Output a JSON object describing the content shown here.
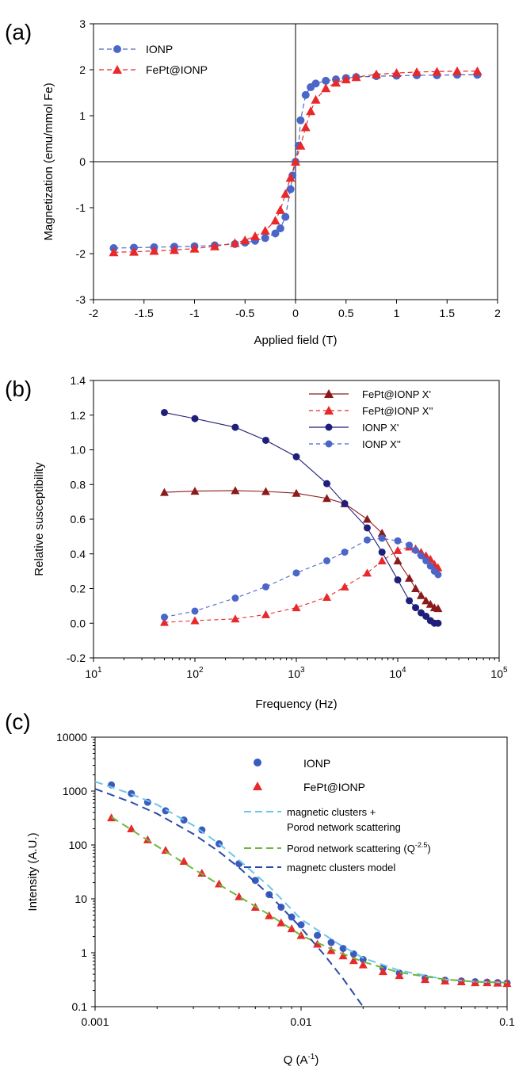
{
  "panels": {
    "a": "(a)",
    "b": "(b)",
    "c": "(c)"
  },
  "chart_data": [
    {
      "type": "scatter",
      "panel_label": "(a)",
      "xlabel": "Applied field  (T)",
      "ylabel": "Magnetization (emu/mmol Fe)",
      "xlim": [
        -2,
        2
      ],
      "ylim": [
        -3,
        3
      ],
      "xticks": [
        "-2",
        "-1.5",
        "-1",
        "-0.5",
        "0",
        "0.5",
        "1",
        "1.5",
        "2"
      ],
      "yticks": [
        "-3",
        "-2",
        "-1",
        "0",
        "1",
        "2",
        "3"
      ],
      "grid": false,
      "zero_lines": true,
      "legend_position": "top-left",
      "series": [
        {
          "name": "IONP",
          "color": "#4a66c8",
          "marker": "circle",
          "line": "dashed",
          "x": [
            -1.8,
            -1.6,
            -1.4,
            -1.2,
            -1.0,
            -0.8,
            -0.6,
            -0.5,
            -0.4,
            -0.3,
            -0.2,
            -0.15,
            -0.1,
            -0.05,
            -0.03,
            0.0,
            0.03,
            0.05,
            0.1,
            0.15,
            0.2,
            0.3,
            0.4,
            0.5,
            0.6,
            0.8,
            1.0,
            1.2,
            1.4,
            1.6,
            1.8
          ],
          "y": [
            -1.88,
            -1.87,
            -1.86,
            -1.85,
            -1.84,
            -1.82,
            -1.79,
            -1.76,
            -1.72,
            -1.66,
            -1.56,
            -1.45,
            -1.2,
            -0.6,
            -0.3,
            0.0,
            0.35,
            0.9,
            1.45,
            1.62,
            1.7,
            1.76,
            1.79,
            1.82,
            1.84,
            1.86,
            1.87,
            1.88,
            1.88,
            1.89,
            1.89
          ]
        },
        {
          "name": "FePt@IONP",
          "color": "#e8292b",
          "marker": "triangle",
          "line": "dashed",
          "x": [
            -1.8,
            -1.6,
            -1.4,
            -1.2,
            -1.0,
            -0.8,
            -0.6,
            -0.5,
            -0.4,
            -0.3,
            -0.2,
            -0.15,
            -0.1,
            -0.05,
            0.0,
            0.05,
            0.1,
            0.15,
            0.2,
            0.3,
            0.4,
            0.5,
            0.6,
            0.8,
            1.0,
            1.2,
            1.4,
            1.6,
            1.8
          ],
          "y": [
            -1.97,
            -1.96,
            -1.94,
            -1.92,
            -1.89,
            -1.84,
            -1.77,
            -1.71,
            -1.62,
            -1.5,
            -1.28,
            -1.05,
            -0.7,
            -0.35,
            0.0,
            0.35,
            0.75,
            1.1,
            1.35,
            1.6,
            1.72,
            1.79,
            1.84,
            1.9,
            1.93,
            1.95,
            1.96,
            1.97,
            1.97
          ]
        }
      ]
    },
    {
      "type": "line",
      "panel_label": "(b)",
      "xlabel": "Frequency (Hz)",
      "ylabel": "Relative susceptibility",
      "xscale": "log",
      "xlim": [
        10,
        100000
      ],
      "ylim": [
        -0.2,
        1.4
      ],
      "xticks": [
        "10",
        "100",
        "1000",
        "10000",
        "100000"
      ],
      "yticks": [
        "-0.2",
        "0.0",
        "0.2",
        "0.4",
        "0.6",
        "0.8",
        "1.0",
        "1.2",
        "1.4"
      ],
      "grid": false,
      "legend_position": "top-right",
      "series": [
        {
          "name": "FePt@IONP X'",
          "color": "#8b1a1a",
          "marker": "triangle",
          "line": "solid",
          "x": [
            50,
            100,
            250,
            500,
            1000,
            2000,
            3000,
            5000,
            7000,
            10000,
            13000,
            15000,
            17000,
            19000,
            21000,
            23000,
            25000
          ],
          "y": [
            0.755,
            0.762,
            0.765,
            0.76,
            0.75,
            0.72,
            0.69,
            0.6,
            0.52,
            0.36,
            0.26,
            0.2,
            0.16,
            0.13,
            0.11,
            0.09,
            0.085
          ]
        },
        {
          "name": "FePt@IONP X''",
          "color": "#e8292b",
          "marker": "triangle",
          "line": "dashed",
          "x": [
            50,
            100,
            250,
            500,
            1000,
            2000,
            3000,
            5000,
            7000,
            10000,
            13000,
            15000,
            17000,
            19000,
            21000,
            23000,
            25000
          ],
          "y": [
            0.005,
            0.015,
            0.025,
            0.05,
            0.09,
            0.15,
            0.21,
            0.29,
            0.36,
            0.42,
            0.44,
            0.43,
            0.41,
            0.39,
            0.37,
            0.34,
            0.32
          ]
        },
        {
          "name": "IONP X'",
          "color": "#1f1f7a",
          "marker": "circle",
          "line": "solid",
          "x": [
            50,
            100,
            250,
            500,
            1000,
            2000,
            3000,
            5000,
            7000,
            10000,
            13000,
            15000,
            17000,
            19000,
            21000,
            23000,
            25000
          ],
          "y": [
            1.215,
            1.18,
            1.13,
            1.055,
            0.96,
            0.805,
            0.69,
            0.55,
            0.41,
            0.25,
            0.13,
            0.09,
            0.06,
            0.04,
            0.015,
            0.0,
            0.0
          ]
        },
        {
          "name": "IONP X''",
          "color": "#4a66c8",
          "marker": "circle",
          "line": "dashed",
          "x": [
            50,
            100,
            250,
            500,
            1000,
            2000,
            3000,
            5000,
            7000,
            10000,
            13000,
            15000,
            17000,
            19000,
            21000,
            23000,
            25000
          ],
          "y": [
            0.035,
            0.07,
            0.145,
            0.21,
            0.29,
            0.36,
            0.41,
            0.48,
            0.49,
            0.475,
            0.45,
            0.42,
            0.39,
            0.36,
            0.33,
            0.3,
            0.28
          ]
        }
      ]
    },
    {
      "type": "scatter",
      "panel_label": "(c)",
      "xlabel": "Q (A",
      "xlabel_sup": "-1",
      "xlabel_end": ")",
      "ylabel": "Intensity (A.U.)",
      "xscale": "log",
      "yscale": "log",
      "xlim": [
        0.001,
        0.1
      ],
      "ylim": [
        0.1,
        10000
      ],
      "xticks": [
        "0.001",
        "0.01",
        "0.1"
      ],
      "yticks": [
        "0.1",
        "1",
        "10",
        "100",
        "1000",
        "10000"
      ],
      "grid": false,
      "legend_position": "top-right",
      "series": [
        {
          "name": "IONP",
          "color": "#3a5bbf",
          "marker": "circle",
          "x": [
            0.0012,
            0.0015,
            0.0018,
            0.0022,
            0.0027,
            0.0033,
            0.004,
            0.005,
            0.006,
            0.007,
            0.008,
            0.009,
            0.01,
            0.012,
            0.014,
            0.016,
            0.018,
            0.02,
            0.025,
            0.03,
            0.04,
            0.05,
            0.06,
            0.07,
            0.08,
            0.09,
            0.1
          ],
          "y": [
            1300,
            900,
            620,
            430,
            290,
            190,
            105,
            45,
            22,
            12,
            7,
            4.6,
            3.3,
            2.1,
            1.55,
            1.2,
            0.95,
            0.75,
            0.52,
            0.42,
            0.34,
            0.31,
            0.3,
            0.29,
            0.285,
            0.28,
            0.275
          ]
        },
        {
          "name": "FePt@IONP",
          "color": "#e8292b",
          "marker": "triangle",
          "x": [
            0.0012,
            0.0015,
            0.0018,
            0.0022,
            0.0027,
            0.0033,
            0.004,
            0.005,
            0.006,
            0.007,
            0.008,
            0.009,
            0.01,
            0.012,
            0.014,
            0.016,
            0.018,
            0.02,
            0.025,
            0.03,
            0.04,
            0.05,
            0.06,
            0.07,
            0.08,
            0.09,
            0.1
          ],
          "y": [
            320,
            200,
            125,
            80,
            50,
            30,
            19,
            11,
            7,
            4.9,
            3.6,
            2.8,
            2.1,
            1.45,
            1.1,
            0.88,
            0.72,
            0.6,
            0.45,
            0.38,
            0.32,
            0.3,
            0.29,
            0.28,
            0.28,
            0.275,
            0.27
          ]
        },
        {
          "name": "magnetic clusters + Porod network scattering",
          "color": "#6cc6e8",
          "line": "dashed",
          "x": [
            0.001,
            0.0015,
            0.002,
            0.003,
            0.004,
            0.005,
            0.007,
            0.01,
            0.015,
            0.02,
            0.03,
            0.05,
            0.07,
            0.1
          ],
          "y": [
            1500,
            880,
            560,
            230,
            105,
            52,
            17,
            4.2,
            1.5,
            0.8,
            0.47,
            0.32,
            0.29,
            0.28
          ]
        },
        {
          "name": "Porod network scattering (Q-2.5)",
          "color": "#6db83a",
          "line": "dashed",
          "x": [
            0.0012,
            0.002,
            0.003,
            0.005,
            0.007,
            0.01,
            0.015,
            0.02,
            0.03,
            0.05,
            0.07,
            0.1
          ],
          "y": [
            330,
            95,
            36,
            11,
            5.1,
            2.1,
            1.05,
            0.68,
            0.43,
            0.32,
            0.29,
            0.28
          ]
        },
        {
          "name": "magnetc clusters model",
          "color": "#2b4ba8",
          "line": "dashed",
          "x": [
            0.001,
            0.0015,
            0.002,
            0.003,
            0.004,
            0.005,
            0.007,
            0.01,
            0.013,
            0.016,
            0.02
          ],
          "y": [
            1100,
            620,
            380,
            160,
            75,
            38,
            12,
            2.9,
            0.9,
            0.33,
            0.1
          ]
        }
      ],
      "legend": {
        "ionp": "IONP",
        "fept": "FePt@IONP",
        "fit1_line1": "magnetic clusters +",
        "fit1_line2": "Porod network scattering",
        "fit2": "Porod network scattering (Q",
        "fit2_sup": "-2.5",
        "fit2_end": ")",
        "fit3": "magnetc clusters model"
      }
    }
  ]
}
